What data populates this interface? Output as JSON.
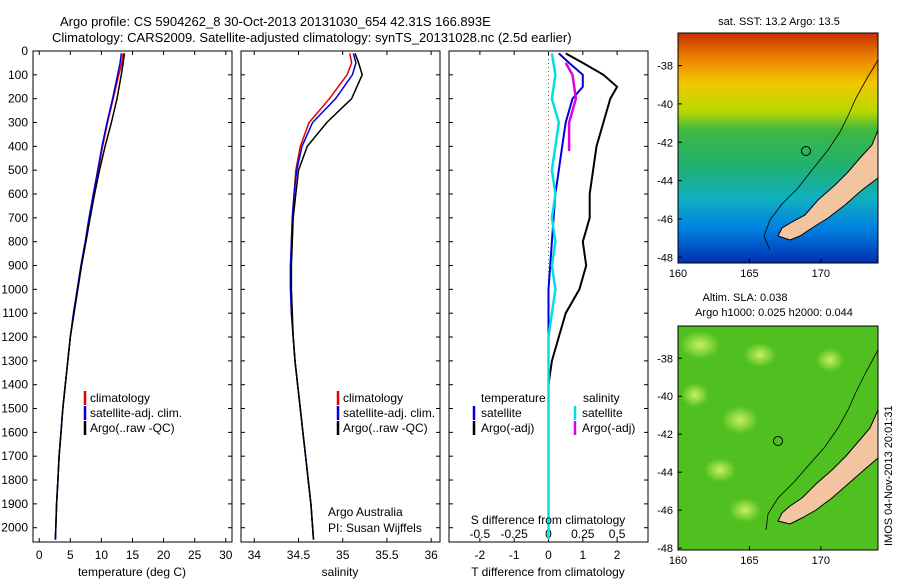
{
  "title_line1": "Argo profile: CS 5904262_8 30-Oct-2013 20131030_654 42.31S 166.893E",
  "title_line2": "Climatology: CARS2009. Satellite-adjusted climatology: synTS_20131028.nc (2.5d earlier)",
  "colors": {
    "climatology": "#e00000",
    "satellite": "#0000dd",
    "argo": "#000000",
    "sat_salinity": "#00e0e0",
    "argo_adj_sal": "#e000e0",
    "land": "#f2c4a0"
  },
  "depth_ticks": [
    "0",
    "100",
    "200",
    "300",
    "400",
    "500",
    "600",
    "700",
    "800",
    "900",
    "1000",
    "1100",
    "1200",
    "1300",
    "1400",
    "1500",
    "1600",
    "1700",
    "1800",
    "1900",
    "2000"
  ],
  "panels": {
    "temperature": {
      "xlabel": "temperature (deg C)",
      "xticks": [
        "0",
        "5",
        "10",
        "15",
        "20",
        "25",
        "30"
      ],
      "legend": [
        "climatology",
        "satellite-adj. clim.",
        "Argo(..raw -QC)"
      ]
    },
    "salinity": {
      "xlabel": "salinity",
      "xticks": [
        "34",
        "34.5",
        "35",
        "35.5",
        "36"
      ],
      "legend": [
        "climatology",
        "satellite-adj. clim.",
        "Argo(..raw -QC)"
      ],
      "credit1": "Argo Australia",
      "credit2": "PI: Susan Wijffels"
    },
    "difference": {
      "xlabel_top": "S difference from climatology",
      "xticks_top": [
        "-0.5",
        "-0.25",
        "0",
        "0.25",
        "0.5"
      ],
      "xlabel_bottom": "T difference from climatology",
      "xticks_bottom": [
        "-2",
        "-1",
        "0",
        "1",
        "2"
      ],
      "legend_temp_title": "temperature",
      "legend_sal_title": "salinity",
      "legend_temp": [
        "satellite",
        "Argo(-adj)"
      ],
      "legend_sal": [
        "satellite",
        "Argo(-adj)"
      ]
    },
    "map_sst": {
      "title": "sat. SST: 13.2  Argo: 13.5",
      "yticks": [
        "-38",
        "-40",
        "-42",
        "-44",
        "-46",
        "-48"
      ],
      "xticks": [
        "160",
        "165",
        "170"
      ]
    },
    "map_sla": {
      "title1": "Altim. SLA: 0.038",
      "title2": "Argo h1000: 0.025  h2000: 0.044",
      "yticks": [
        "-38",
        "-40",
        "-42",
        "-44",
        "-46",
        "-48"
      ],
      "xticks": [
        "160",
        "165",
        "170"
      ],
      "stamp": "IMOS 04-Nov-2013 20:01:31"
    }
  },
  "chart_data": [
    {
      "type": "line",
      "title": "",
      "xlabel": "temperature (deg C)",
      "ylabel": "",
      "xlim": [
        -1,
        31
      ],
      "ylim": [
        2060,
        0
      ],
      "series": [
        {
          "name": "climatology",
          "x": [
            13.5,
            13.3,
            12.8,
            11.9,
            11.0,
            10.2,
            9.5,
            8.8,
            8.1,
            7.5,
            6.8,
            6.2,
            5.6,
            5.0,
            4.6,
            4.2,
            3.8,
            3.5,
            3.2,
            3.0,
            2.8,
            2.6
          ],
          "y": [
            10,
            50,
            100,
            200,
            300,
            400,
            500,
            600,
            700,
            800,
            900,
            1000,
            1100,
            1200,
            1300,
            1400,
            1500,
            1600,
            1700,
            1800,
            1900,
            2050
          ]
        },
        {
          "name": "satellite-adj. clim.",
          "x": [
            13.2,
            13.0,
            12.6,
            11.8,
            10.9,
            10.1,
            9.4,
            8.7,
            8.0,
            7.4,
            6.7,
            6.1,
            5.5,
            5.0,
            4.6,
            4.2,
            3.8,
            3.5,
            3.2,
            3.0,
            2.8,
            2.6
          ],
          "y": [
            10,
            50,
            100,
            200,
            300,
            400,
            500,
            600,
            700,
            800,
            900,
            1000,
            1100,
            1200,
            1300,
            1400,
            1500,
            1600,
            1700,
            1800,
            1900,
            2050
          ]
        },
        {
          "name": "Argo(..raw -QC)",
          "x": [
            13.7,
            13.5,
            13.2,
            12.5,
            11.6,
            10.6,
            9.7,
            8.9,
            8.2,
            7.5,
            6.8,
            6.2,
            5.6,
            5.0,
            4.6,
            4.2,
            3.8,
            3.5,
            3.2,
            3.0,
            2.8,
            2.6
          ],
          "y": [
            10,
            50,
            100,
            200,
            300,
            400,
            500,
            600,
            700,
            800,
            900,
            1000,
            1100,
            1200,
            1300,
            1400,
            1500,
            1600,
            1700,
            1800,
            1900,
            2050
          ]
        }
      ]
    },
    {
      "type": "line",
      "title": "",
      "xlabel": "salinity",
      "ylabel": "",
      "xlim": [
        33.85,
        36.1
      ],
      "ylim": [
        2060,
        0
      ],
      "series": [
        {
          "name": "climatology",
          "x": [
            35.08,
            35.1,
            35.05,
            34.85,
            34.62,
            34.52,
            34.47,
            34.45,
            34.43,
            34.42,
            34.41,
            34.41,
            34.42,
            34.44,
            34.46,
            34.49,
            34.52,
            34.55,
            34.58,
            34.61,
            34.64,
            34.67
          ],
          "y": [
            10,
            50,
            100,
            200,
            300,
            400,
            500,
            600,
            700,
            800,
            900,
            1000,
            1100,
            1200,
            1300,
            1400,
            1500,
            1600,
            1700,
            1800,
            1900,
            2050
          ]
        },
        {
          "name": "satellite-adj. clim.",
          "x": [
            35.12,
            35.15,
            35.11,
            34.92,
            34.66,
            34.54,
            34.48,
            34.45,
            34.43,
            34.42,
            34.41,
            34.41,
            34.42,
            34.44,
            34.46,
            34.49,
            34.52,
            34.55,
            34.58,
            34.61,
            34.64,
            34.67
          ],
          "y": [
            10,
            50,
            100,
            200,
            300,
            400,
            500,
            600,
            700,
            800,
            900,
            1000,
            1100,
            1200,
            1300,
            1400,
            1500,
            1600,
            1700,
            1800,
            1900,
            2050
          ]
        },
        {
          "name": "Argo(..raw -QC)",
          "x": [
            35.14,
            35.18,
            35.22,
            35.1,
            34.82,
            34.6,
            34.5,
            34.47,
            34.44,
            34.43,
            34.42,
            34.42,
            34.43,
            34.44,
            34.46,
            34.49,
            34.52,
            34.55,
            34.58,
            34.61,
            34.64,
            34.67
          ],
          "y": [
            10,
            50,
            100,
            200,
            300,
            400,
            500,
            600,
            700,
            800,
            900,
            1000,
            1100,
            1200,
            1300,
            1400,
            1500,
            1600,
            1700,
            1800,
            1900,
            2050
          ]
        }
      ]
    },
    {
      "type": "line",
      "title": "",
      "xlabel": "T difference from climatology",
      "ylabel": "",
      "xlim": [
        -2.9,
        2.9
      ],
      "ylim": [
        2060,
        0
      ],
      "series": [
        {
          "name": "temperature satellite",
          "x": [
            0.3,
            0.6,
            1.0,
            1.0,
            0.7,
            0.5,
            0.4,
            0.3,
            0.2,
            0.15,
            0.1,
            0.05,
            0.0,
            0.0,
            0.0
          ],
          "y": [
            10,
            50,
            100,
            150,
            200,
            300,
            400,
            500,
            600,
            700,
            800,
            900,
            1000,
            1300,
            1400
          ]
        },
        {
          "name": "temperature Argo(-adj)",
          "x": [
            0.5,
            1.0,
            1.6,
            2.0,
            1.8,
            1.6,
            1.4,
            1.3,
            1.2,
            1.2,
            1.0,
            1.1,
            0.9,
            0.5,
            0.3,
            0.1,
            0.0
          ],
          "y": [
            10,
            50,
            100,
            150,
            200,
            300,
            400,
            500,
            600,
            700,
            800,
            900,
            1000,
            1100,
            1200,
            1300,
            1400
          ]
        },
        {
          "name": "salinity satellite",
          "x": [
            0.1,
            0.2,
            0.1,
            0.3,
            0.2,
            0.1,
            0.2,
            0.1,
            0.2,
            0.1,
            0.2,
            0.1,
            0.0,
            0.0
          ],
          "y": [
            10,
            100,
            200,
            300,
            400,
            500,
            600,
            700,
            800,
            900,
            1000,
            1100,
            1200,
            2050
          ]
        },
        {
          "name": "salinity Argo(-adj)",
          "x": [
            0.5,
            0.7,
            0.8,
            0.6,
            0.6
          ],
          "y": [
            50,
            100,
            200,
            300,
            420
          ]
        }
      ]
    }
  ]
}
